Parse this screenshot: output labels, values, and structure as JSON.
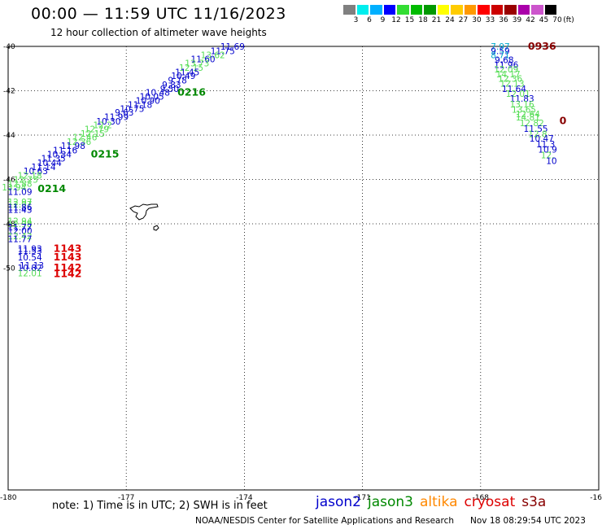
{
  "header": {
    "title": "00:00 — 11:59 UTC 11/16/2023",
    "subtitle": "12 hour collection of altimeter wave heights"
  },
  "colorbar": {
    "colors": [
      "#808080",
      "#00eeee",
      "#00b0ff",
      "#0000ff",
      "#33dd33",
      "#00bb00",
      "#009900",
      "#ffff00",
      "#ffcc00",
      "#ff9900",
      "#ff0000",
      "#cc0000",
      "#990000",
      "#aa00aa",
      "#cc55cc",
      "#000000"
    ],
    "labels": [
      "3",
      "6",
      "9",
      "12",
      "15",
      "18",
      "21",
      "24",
      "27",
      "30",
      "33",
      "36",
      "39",
      "42",
      "45",
      "70"
    ],
    "unit": "(ft)"
  },
  "axes": {
    "lat_labels": [
      "-40",
      "-42",
      "-44",
      "-46",
      "-48",
      "-50"
    ],
    "lon_labels": [
      "-180",
      "-177",
      "-174",
      "-171",
      "-168",
      "-16"
    ]
  },
  "colors": {
    "jason2": "#0000cc",
    "jason3": "#008800",
    "altika": "#ff8800",
    "cryosat": "#dd0000",
    "s3a": "#880000",
    "light_green": "#55dd55",
    "teal": "#00aacc"
  },
  "observations": [
    {
      "lat": -40.0,
      "lon": -174.3,
      "swh": "11.69",
      "color": "#0000cc"
    },
    {
      "lat": -40.2,
      "lon": -174.55,
      "swh": "11.75",
      "color": "#0000cc"
    },
    {
      "lat": -40.38,
      "lon": -174.8,
      "swh": "13.62",
      "color": "#55dd55"
    },
    {
      "lat": -40.57,
      "lon": -175.05,
      "swh": "11.60",
      "color": "#0000cc"
    },
    {
      "lat": -40.76,
      "lon": -175.2,
      "swh": "13.73",
      "color": "#55dd55"
    },
    {
      "lat": -40.95,
      "lon": -175.35,
      "swh": "12.15",
      "color": "#55dd55"
    },
    {
      "lat": -41.15,
      "lon": -175.45,
      "swh": "11.45",
      "color": "#0000cc"
    },
    {
      "lat": -41.33,
      "lon": -175.55,
      "swh": "10.49",
      "color": "#0000cc"
    },
    {
      "lat": -41.52,
      "lon": -175.7,
      "swh": "9.78",
      "color": "#0000cc"
    },
    {
      "lat": -41.72,
      "lon": -175.85,
      "swh": "9.83",
      "color": "#0000cc"
    },
    {
      "lat": -41.9,
      "lon": -175.9,
      "swh": "9.50",
      "color": "#0000cc"
    },
    {
      "lat": -42.07,
      "lon": -176.2,
      "swh": "10.48",
      "color": "#0000cc"
    },
    {
      "lat": -42.25,
      "lon": -176.35,
      "swh": "10.05",
      "color": "#0000cc"
    },
    {
      "lat": -42.44,
      "lon": -176.45,
      "swh": "10.90",
      "color": "#0000cc"
    },
    {
      "lat": -42.62,
      "lon": -176.65,
      "swh": "11.18",
      "color": "#0000cc"
    },
    {
      "lat": -42.8,
      "lon": -176.85,
      "swh": "10.75",
      "color": "#0000cc"
    },
    {
      "lat": -42.98,
      "lon": -177.05,
      "swh": "9.63",
      "color": "#0000cc"
    },
    {
      "lat": -43.18,
      "lon": -177.25,
      "swh": "11.99",
      "color": "#0000cc"
    },
    {
      "lat": -43.37,
      "lon": -177.45,
      "swh": "10.30",
      "color": "#0000cc"
    },
    {
      "lat": -43.55,
      "lon": -177.6,
      "swh": "12.2",
      "color": "#55dd55"
    },
    {
      "lat": -43.73,
      "lon": -177.75,
      "swh": "12.79",
      "color": "#55dd55"
    },
    {
      "lat": -43.92,
      "lon": -177.85,
      "swh": "12.15",
      "color": "#55dd55"
    },
    {
      "lat": -44.1,
      "lon": -178.05,
      "swh": "12.46",
      "color": "#55dd55"
    },
    {
      "lat": -44.3,
      "lon": -178.2,
      "swh": "12.36",
      "color": "#55dd55"
    },
    {
      "lat": -44.48,
      "lon": -178.35,
      "swh": "11.98",
      "color": "#0000cc"
    },
    {
      "lat": -44.67,
      "lon": -178.55,
      "swh": "11.16",
      "color": "#0000cc"
    },
    {
      "lat": -44.87,
      "lon": -178.7,
      "swh": "10.34",
      "color": "#0000cc"
    },
    {
      "lat": -45.05,
      "lon": -178.85,
      "swh": "11.35",
      "color": "#0000cc"
    },
    {
      "lat": -45.24,
      "lon": -178.95,
      "swh": "10.44",
      "color": "#0000cc"
    },
    {
      "lat": -45.43,
      "lon": -179.1,
      "swh": "11.14",
      "color": "#0000cc"
    },
    {
      "lat": -45.62,
      "lon": -179.3,
      "swh": "10.63",
      "color": "#0000cc"
    },
    {
      "lat": -45.82,
      "lon": -179.45,
      "swh": "12.18",
      "color": "#55dd55"
    },
    {
      "lat": -46.0,
      "lon": -179.55,
      "swh": "12.73",
      "color": "#55dd55"
    },
    {
      "lat": -46.18,
      "lon": -179.7,
      "swh": "12.88",
      "color": "#55dd55"
    },
    {
      "lat": -46.35,
      "lon": -179.85,
      "swh": "13.94",
      "color": "#55dd55"
    },
    {
      "lat": -46.55,
      "lon": -179.7,
      "swh": "11.09",
      "color": "#0000cc"
    },
    {
      "lat": -47.0,
      "lon": -179.7,
      "swh": "12.97",
      "color": "#55dd55"
    },
    {
      "lat": -47.12,
      "lon": -179.7,
      "swh": "12.97",
      "color": "#55dd55"
    },
    {
      "lat": -47.24,
      "lon": -179.7,
      "swh": "11.86",
      "color": "#0000cc"
    },
    {
      "lat": -47.36,
      "lon": -179.7,
      "swh": "11.43",
      "color": "#0000cc"
    },
    {
      "lat": -47.88,
      "lon": -179.7,
      "swh": "12.94",
      "color": "#55dd55"
    },
    {
      "lat": -48.0,
      "lon": -179.7,
      "swh": "12.98",
      "color": "#55dd55"
    },
    {
      "lat": -48.15,
      "lon": -179.7,
      "swh": "11.77",
      "color": "#0000cc"
    },
    {
      "lat": -48.32,
      "lon": -179.7,
      "swh": "12.00",
      "color": "#0000cc"
    },
    {
      "lat": -48.55,
      "lon": -179.7,
      "swh": "12.42",
      "color": "#55dd55"
    },
    {
      "lat": -48.68,
      "lon": -179.7,
      "swh": "11.77",
      "color": "#0000cc"
    },
    {
      "lat": -49.12,
      "lon": -179.45,
      "swh": "11.93",
      "color": "#0000cc"
    },
    {
      "lat": -49.22,
      "lon": -179.45,
      "swh": "11.53",
      "color": "#0000cc"
    },
    {
      "lat": -49.5,
      "lon": -179.45,
      "swh": "10.54",
      "color": "#0000cc"
    },
    {
      "lat": -49.88,
      "lon": -179.4,
      "swh": "11.13",
      "color": "#0000cc"
    },
    {
      "lat": -49.98,
      "lon": -179.45,
      "swh": "10.82",
      "color": "#0000cc"
    },
    {
      "lat": -50.22,
      "lon": -179.45,
      "swh": "12.01",
      "color": "#55dd55"
    },
    {
      "lat": -40.0,
      "lon": -167.5,
      "swh": "7.97",
      "color": "#00aacc"
    },
    {
      "lat": -40.2,
      "lon": -167.5,
      "swh": "9.59",
      "color": "#0000cc"
    },
    {
      "lat": -40.38,
      "lon": -167.5,
      "swh": "8.71",
      "color": "#00aacc"
    },
    {
      "lat": -40.6,
      "lon": -167.4,
      "swh": "9.68",
      "color": "#0000cc"
    },
    {
      "lat": -40.82,
      "lon": -167.35,
      "swh": "11.96",
      "color": "#0000cc"
    },
    {
      "lat": -41.03,
      "lon": -167.35,
      "swh": "12.09",
      "color": "#55dd55"
    },
    {
      "lat": -41.25,
      "lon": -167.3,
      "swh": "14.17",
      "color": "#55dd55"
    },
    {
      "lat": -41.45,
      "lon": -167.25,
      "swh": "12.36",
      "color": "#55dd55"
    },
    {
      "lat": -41.67,
      "lon": -167.2,
      "swh": "12.13",
      "color": "#55dd55"
    },
    {
      "lat": -41.9,
      "lon": -167.15,
      "swh": "11.64",
      "color": "#0000cc"
    },
    {
      "lat": -42.12,
      "lon": -167.05,
      "swh": "12.01",
      "color": "#55dd55"
    },
    {
      "lat": -42.35,
      "lon": -166.95,
      "swh": "11.83",
      "color": "#0000cc"
    },
    {
      "lat": -42.6,
      "lon": -166.95,
      "swh": "13.16",
      "color": "#55dd55"
    },
    {
      "lat": -42.85,
      "lon": -166.9,
      "swh": "13.65",
      "color": "#55dd55"
    },
    {
      "lat": -43.05,
      "lon": -166.8,
      "swh": "12.64",
      "color": "#55dd55"
    },
    {
      "lat": -43.2,
      "lon": -166.8,
      "swh": "14.81",
      "color": "#55dd55"
    },
    {
      "lat": -43.45,
      "lon": -166.7,
      "swh": "12.82",
      "color": "#55dd55"
    },
    {
      "lat": -43.7,
      "lon": -166.6,
      "swh": "11.55",
      "color": "#0000cc"
    },
    {
      "lat": -43.95,
      "lon": -166.55,
      "swh": "12.8",
      "color": "#55dd55"
    },
    {
      "lat": -44.15,
      "lon": -166.45,
      "swh": "10.47",
      "color": "#0000cc"
    },
    {
      "lat": -44.4,
      "lon": -166.35,
      "swh": "11.3",
      "color": "#0000cc"
    },
    {
      "lat": -44.65,
      "lon": -166.3,
      "swh": "10.9",
      "color": "#0000cc"
    },
    {
      "lat": -44.9,
      "lon": -166.3,
      "swh": "12.",
      "color": "#55dd55"
    },
    {
      "lat": -45.15,
      "lon": -166.2,
      "swh": "10",
      "color": "#0000cc"
    }
  ],
  "pass_times": [
    {
      "lat": -42.07,
      "lon": -175.7,
      "time": "0216",
      "color": "#008800"
    },
    {
      "lat": -44.87,
      "lon": -177.9,
      "time": "0215",
      "color": "#008800"
    },
    {
      "lat": -46.42,
      "lon": -179.25,
      "time": "0214",
      "color": "#008800"
    },
    {
      "lat": -49.12,
      "lon": -178.85,
      "time": "1143",
      "color": "#dd0000"
    },
    {
      "lat": -49.5,
      "lon": -178.85,
      "time": "1143",
      "color": "#dd0000"
    },
    {
      "lat": -49.98,
      "lon": -178.85,
      "time": "1142",
      "color": "#dd0000"
    },
    {
      "lat": -50.25,
      "lon": -178.85,
      "time": "1142",
      "color": "#dd0000"
    },
    {
      "lat": -40.0,
      "lon": -166.8,
      "time": "0936",
      "color": "#880000"
    },
    {
      "lat": -43.35,
      "lon": -166.0,
      "time": "0",
      "color": "#880000"
    }
  ],
  "footer": {
    "note": "note:  1) Time is in UTC;  2) SWH is in feet",
    "missions": [
      {
        "name": "jason2",
        "color": "#0000cc"
      },
      {
        "name": "jason3",
        "color": "#008800"
      },
      {
        "name": "altika",
        "color": "#ff8800"
      },
      {
        "name": "cryosat",
        "color": "#dd0000"
      },
      {
        "name": "s3a",
        "color": "#880000"
      }
    ],
    "credit": "NOAA/NESDIS Center for Satellite Applications and Research",
    "stamp": "Nov 18 08:29:54 UTC 2023"
  }
}
